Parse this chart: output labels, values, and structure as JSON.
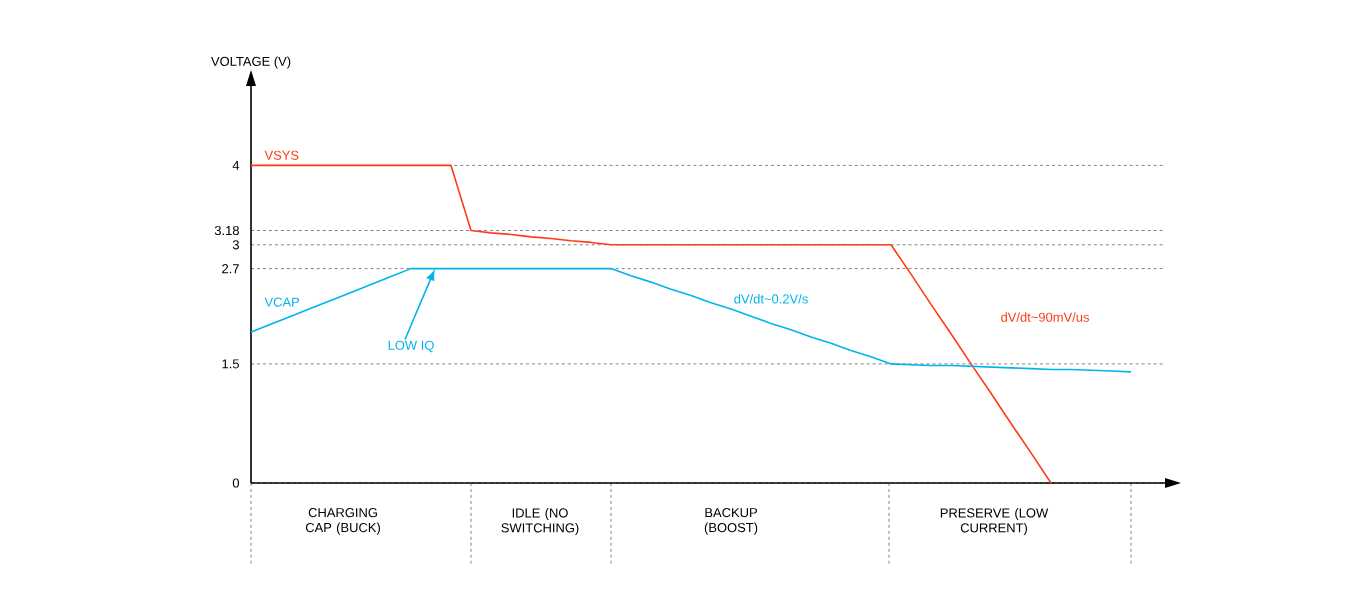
{
  "chart_data": {
    "type": "line",
    "ylabel": "VOLTAGE (V)",
    "categories": [
      null,
      null,
      null,
      null,
      null,
      null,
      null,
      null,
      null,
      null,
      null,
      null,
      null,
      null,
      null,
      null,
      null,
      null,
      null,
      null,
      null,
      null,
      null,
      null,
      null,
      null,
      null,
      null,
      null,
      null,
      null,
      null,
      null,
      null,
      null,
      null,
      null,
      null,
      null,
      null,
      null,
      null,
      null,
      null,
      null
    ],
    "ylim": [
      0,
      5
    ],
    "yticks": [
      0,
      1.5,
      2.7,
      3,
      3.18,
      4
    ],
    "tick_labels": "y",
    "grid": "y",
    "legend": false,
    "marker": "none",
    "line_style": "solid",
    "series": [
      {
        "name": "VSYS",
        "color": "#ff3a1a",
        "values": [
          4,
          4,
          4,
          4,
          4,
          4,
          4,
          4,
          4,
          4,
          4,
          3.18,
          3.15,
          3.13,
          3.1,
          3.08,
          3.05,
          3.03,
          3,
          3,
          3,
          3,
          3,
          3,
          3,
          3,
          3,
          3,
          3,
          3,
          3,
          3,
          3,
          2.63,
          2.25,
          1.88,
          1.5,
          1.13,
          0.75,
          0.38,
          0,
          null,
          null,
          null,
          null
        ]
      },
      {
        "name": "VCAP",
        "color": "#00b4ec",
        "values": [
          1.9,
          2.0,
          2.1,
          2.2,
          2.3,
          2.4,
          2.5,
          2.6,
          2.7,
          2.7,
          2.7,
          2.7,
          2.7,
          2.7,
          2.7,
          2.7,
          2.7,
          2.7,
          2.7,
          2.61,
          2.53,
          2.44,
          2.36,
          2.27,
          2.19,
          2.1,
          2.01,
          1.93,
          1.84,
          1.76,
          1.67,
          1.59,
          1.5,
          1.49,
          1.48,
          1.48,
          1.47,
          1.46,
          1.45,
          1.44,
          1.43,
          1.43,
          1.42,
          1.41,
          1.4
        ]
      }
    ],
    "annotations": [
      "LOW IQ",
      "dV/dt~0.2V/s",
      "dV/dt~90mV/us",
      "CHARGING CAP (BUCK)",
      "IDLE (NO SWITCHING)",
      "BACKUP (BOOST)",
      "PRESERVE (LOW CURRENT)"
    ]
  }
}
